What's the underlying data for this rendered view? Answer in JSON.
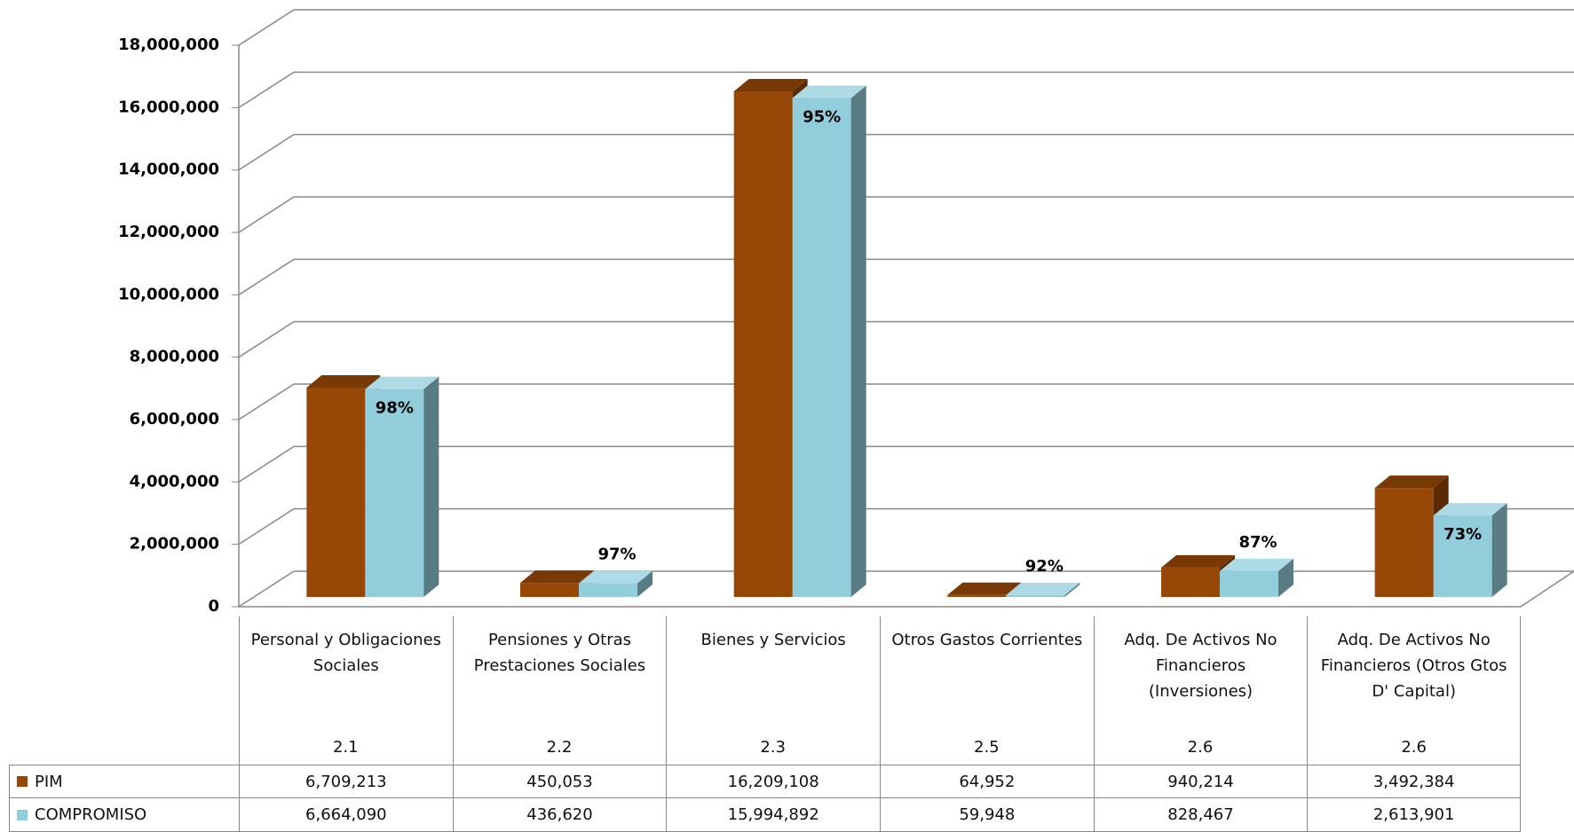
{
  "chart_data": {
    "type": "bar3d",
    "categories": [
      "Personal y Obligaciones Sociales",
      "Pensiones y Otras Prestaciones Sociales",
      "Bienes y Servicios",
      "Otros Gastos Corrientes",
      "Adq. De Activos No Financieros (Inversiones)",
      "Adq. De Activos No Financieros (Otros Gtos D' Capital)"
    ],
    "codes": [
      "2.1",
      "2.2",
      "2.3",
      "2.5",
      "2.6",
      "2.6"
    ],
    "series": [
      {
        "name": "PIM",
        "color": "#974706",
        "values": [
          6709213,
          450053,
          16209108,
          64952,
          940214,
          3492384
        ],
        "value_labels": [
          "6,709,213",
          "450,053",
          "16,209,108",
          "64,952",
          "940,214",
          "3,492,384"
        ]
      },
      {
        "name": "COMPROMISO",
        "color": "#92cddc",
        "values": [
          6664090,
          436620,
          15994892,
          59948,
          828467,
          2613901
        ],
        "value_labels": [
          "6,664,090",
          "436,620",
          "15,994,892",
          "59,948",
          "828,467",
          "2,613,901"
        ]
      }
    ],
    "percent_labels": [
      "98%",
      "97%",
      "95%",
      "92%",
      "87%",
      "73%"
    ],
    "ylim": [
      0,
      18000000
    ],
    "yticks": [
      {
        "value": 0,
        "label": "0"
      },
      {
        "value": 2000000,
        "label": "2,000,000"
      },
      {
        "value": 4000000,
        "label": "4,000,000"
      },
      {
        "value": 6000000,
        "label": "6,000,000"
      },
      {
        "value": 8000000,
        "label": "8,000,000"
      },
      {
        "value": 10000000,
        "label": "10,000,000"
      },
      {
        "value": 12000000,
        "label": "12,000,000"
      },
      {
        "value": 14000000,
        "label": "14,000,000"
      },
      {
        "value": 16000000,
        "label": "16,000,000"
      },
      {
        "value": 18000000,
        "label": "18,000,000"
      }
    ],
    "grid": true
  }
}
